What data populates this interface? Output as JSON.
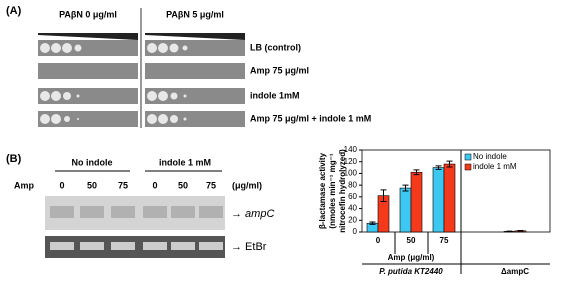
{
  "panel_a": {
    "label": "(A)",
    "headers": [
      "PAβN 0 μg/ml",
      "PAβN 5 μg/ml"
    ],
    "rows": [
      "LB (control)",
      "Amp 75 μg/ml",
      "indole 1mM",
      "Amp 75 μg/ml + indole 1 mM"
    ]
  },
  "panel_b": {
    "label": "(B)",
    "groups": [
      "No indole",
      "indole 1 mM"
    ],
    "amp_label": "Amp",
    "lanes": [
      "0",
      "50",
      "75",
      "0",
      "50",
      "75"
    ],
    "unit": "(μg/ml)",
    "bands": [
      "→ ampC",
      "→ EtBr"
    ]
  },
  "chart_data": {
    "type": "bar",
    "ylabel": [
      "β-lactamase activity",
      "(nmoles min⁻¹ mg⁻¹",
      "nitrocefin hydrolyzed)"
    ],
    "xlabel": "Amp (μg/ml)",
    "categories": [
      "0",
      "50",
      "75",
      null
    ],
    "x_groups": [
      "P. putida KT2440",
      "ΔampC"
    ],
    "series": [
      {
        "name": "No indole",
        "color": "#3cc8f0",
        "values": [
          15,
          75,
          110,
          1
        ],
        "errors": [
          2,
          5,
          3,
          0.5
        ]
      },
      {
        "name": "indole 1 mM",
        "color": "#f53a1c",
        "values": [
          62,
          102,
          116,
          2
        ],
        "errors": [
          10,
          4,
          5,
          0.5
        ]
      }
    ],
    "ylim": [
      0,
      140
    ],
    "yticks": [
      0,
      20,
      40,
      60,
      80,
      100,
      120,
      140
    ],
    "legend": "upper-left"
  }
}
